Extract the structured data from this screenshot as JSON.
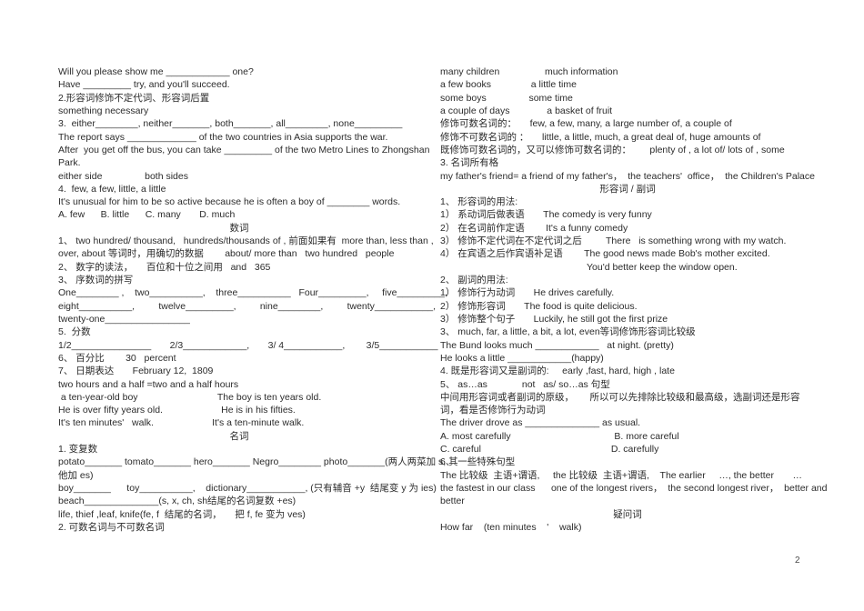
{
  "page_number": "2",
  "columns": {
    "left": [
      {
        "text": "Will you please show me ____________ one?"
      },
      {
        "text": "Have _________ try, and you'll succeed."
      },
      {
        "text": "2.形容词修饰不定代词、形容词后置"
      },
      {
        "text": "something necessary"
      },
      {
        "text": "3.  either________, neither_______, both_______, all________, none_________"
      },
      {
        "text": "The report says _____________ of the two countries in Asia supports the war."
      },
      {
        "text": "After  you get off the bus, you can take _________ of the two Metro Lines to Zhongshan"
      },
      {
        "text": "Park."
      },
      {
        "text": "either side                both sides"
      },
      {
        "text": "4.  few, a few, little, a little"
      },
      {
        "text": "It's unusual for him to be so active because he is often a boy of ________ words."
      },
      {
        "text": "A. few      B. little      C. many       D. much"
      },
      {
        "text": "数词",
        "align": "center",
        "name": "section-heading-numerals"
      },
      {
        "text": "1、 two hundred/ thousand,   hundreds/thousands of , 前面如果有  more than, less than ,"
      },
      {
        "text": "over, about 等词时，用确切的数据        about/ more than   two hundred   people"
      },
      {
        "text": "2、 数字的读法，     百位和十位之间用   and   365"
      },
      {
        "text": "3、 序数词的拼写"
      },
      {
        "text": "One________ ,    two__________,    three__________   Four_________,     five_________,"
      },
      {
        "text": "eight__________,         twelve_________,         nine________,         twenty___________,"
      },
      {
        "text": "twenty-one________________"
      },
      {
        "text": "5.  分数"
      },
      {
        "text": "1/2_______________       2/3____________,       3/ 4___________,        3/5___________"
      },
      {
        "text": "6、 百分比        30   percent"
      },
      {
        "text": "7、 日期表达       February 12,  1809"
      },
      {
        "text": "two hours and a half =two and a half hours"
      },
      {
        "text": " a ten-year-old boy                              The boy is ten years old."
      },
      {
        "text": "He is over fifty years old.                      He is in his fifties."
      },
      {
        "text": "It's ten minutes'   walk.                      It's a ten-minute walk."
      },
      {
        "text": "名词",
        "align": "center",
        "name": "section-heading-nouns"
      },
      {
        "text": "1. 变复数"
      },
      {
        "text": "potato_______ tomato_______ hero_______ Negro________ photo_______(两人两菜加 s, 其"
      },
      {
        "text": "他加 es)"
      },
      {
        "text": "boy_______      toy__________,    dictionary___________, (只有辅音 +y  结尾变 y 为 ies)"
      },
      {
        "text": "beach______________(s, x, ch, sh结尾的名词复数 +es)"
      },
      {
        "text": "life, thief ,leaf, knife(fe, f  结尾的名词，     把 f, fe 变为 ves)"
      },
      {
        "text": "2. 可数名词与不可数名词"
      }
    ],
    "right": [
      {
        "text": "many children                 much information"
      },
      {
        "text": "a few books               a little time"
      },
      {
        "text": "some boys                some time"
      },
      {
        "text": "a couple of days              a basket of fruit"
      },
      {
        "text": "修饰可数名词的：     few, a few, many, a large number of, a couple of"
      },
      {
        "text": "修饰不可数名词的 ：     little, a little, much, a great deal of, huge amounts of"
      },
      {
        "text": "既修饰可数名词的，又可以修饰可数名词的：       plenty of , a lot of/ lots of , some"
      },
      {
        "text": "3. 名词所有格"
      },
      {
        "text": "my father's friend= a friend of my father's，  the teachers'  office，  the Children's Palace"
      },
      {
        "text": "形容词 / 副词",
        "align": "center",
        "name": "section-heading-adjectives-adverbs"
      },
      {
        "text": "1、 形容词的用法:"
      },
      {
        "text": "1） 系动词后做表语       The comedy is very funny"
      },
      {
        "text": "2） 在名词前作定语        It's a funny comedy"
      },
      {
        "text": "3） 修饰不定代词在不定代词之后         There   is something wrong with my watch."
      },
      {
        "text": "4） 在宾语之后作宾语补足语        The good news made Bob's mother excited."
      },
      {
        "text": "You'd better keep the window open.",
        "align": "indent"
      },
      {
        "text": "2、 副词的用法:"
      },
      {
        "text": "1） 修饰行为动词       He drives carefully."
      },
      {
        "text": "2） 修饰形容词       The food is quite delicious."
      },
      {
        "text": "3） 修饰整个句子       Luckily, he still got the first prize"
      },
      {
        "text": "3、 much, far, a little, a bit, a lot, even等词修饰形容词比较级"
      },
      {
        "text": "The Bund looks much ____________   at night. (pretty)"
      },
      {
        "text": "He looks a little ____________(happy)"
      },
      {
        "text": "4. 既是形容词又是副词的:     early ,fast, hard, high , late"
      },
      {
        "text": "5、 as…as             not   as/ so…as 句型"
      },
      {
        "text": "中间用形容词或者副词的原级，      所以可以先排除比较级和最高级，选副词还是形容"
      },
      {
        "text": "词，看是否修饰行为动词"
      },
      {
        "text": "The driver drove as ______________ as usual."
      },
      {
        "text": "A. most carefully                                       B. more careful"
      },
      {
        "text": "C. careful                                                 D. carefully"
      },
      {
        "text": "6、 一些特殊句型"
      },
      {
        "text": "The 比较级  主语+谓语,     the 比较级  主语+谓语,    The earlier     …, the better       …"
      },
      {
        "text": "the fastest in our class      one of the longest rivers，  the second longest river，  better and"
      },
      {
        "text": "better"
      },
      {
        "text": "疑问词",
        "align": "center",
        "name": "section-heading-question-words"
      },
      {
        "text": "How far    (ten minutes    '    walk)"
      }
    ]
  }
}
